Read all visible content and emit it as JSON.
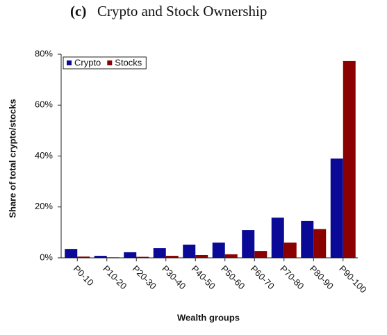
{
  "chart_data": {
    "type": "bar",
    "panel": "(c)",
    "title": "Crypto and Stock Ownership",
    "x_label": "Wealth groups",
    "y_label": "Share of total crypto/stocks",
    "categories": [
      "P0-10",
      "P10-20",
      "P20-30",
      "P30-40",
      "P40-50",
      "P50-60",
      "P60-70",
      "P70-80",
      "P80-90",
      "P90-100"
    ],
    "series": [
      {
        "name": "Crypto",
        "color": "#0a0a96",
        "values": [
          3.5,
          0.8,
          2.2,
          3.8,
          5.2,
          6.0,
          10.9,
          15.8,
          14.5,
          39.0
        ]
      },
      {
        "name": "Stocks",
        "color": "#8b0000",
        "values": [
          0.5,
          0.2,
          0.4,
          0.8,
          1.1,
          1.4,
          2.7,
          6.0,
          11.3,
          77.3
        ]
      }
    ],
    "ylim": [
      0,
      80
    ],
    "yticks": [
      {
        "value": 0,
        "label": "0%"
      },
      {
        "value": 20,
        "label": "20%"
      },
      {
        "value": 40,
        "label": "40%"
      },
      {
        "value": 60,
        "label": "60%"
      },
      {
        "value": 80,
        "label": "80%"
      }
    ],
    "legend": "upper left"
  }
}
